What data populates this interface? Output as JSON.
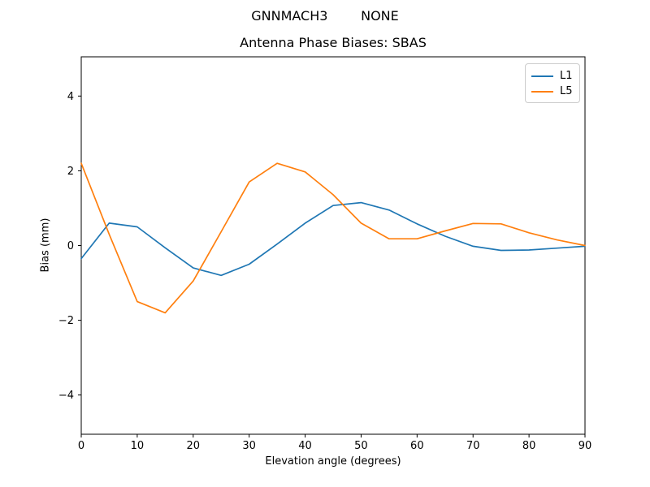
{
  "suptitle": "GNNMACH3        NONE",
  "chart_data": {
    "type": "line",
    "title": "Antenna Phase Biases: SBAS",
    "xlabel": "Elevation angle (degrees)",
    "ylabel": "Bias (mm)",
    "xlim": [
      0,
      90
    ],
    "ylim": [
      -5.05,
      5.05
    ],
    "xticks": [
      0,
      10,
      20,
      30,
      40,
      50,
      60,
      70,
      80,
      90
    ],
    "yticks": [
      -4,
      -2,
      0,
      2,
      4
    ],
    "grid": false,
    "legend_position": "upper right",
    "background": "#ffffff",
    "spine_color": "#000000",
    "x": [
      0,
      5,
      10,
      15,
      20,
      25,
      30,
      35,
      40,
      45,
      50,
      55,
      60,
      65,
      70,
      75,
      80,
      85,
      90
    ],
    "series": [
      {
        "name": "L1",
        "color": "#1f77b4",
        "values": [
          -0.35,
          0.6,
          0.5,
          -0.06,
          -0.6,
          -0.8,
          -0.5,
          0.04,
          0.6,
          1.07,
          1.15,
          0.95,
          0.58,
          0.25,
          -0.02,
          -0.13,
          -0.12,
          -0.07,
          -0.02
        ]
      },
      {
        "name": "L5",
        "color": "#ff7f0e",
        "values": [
          2.2,
          0.3,
          -1.5,
          -1.8,
          -0.95,
          0.37,
          1.7,
          2.2,
          1.97,
          1.36,
          0.6,
          0.18,
          0.18,
          0.39,
          0.59,
          0.58,
          0.34,
          0.15,
          0.0
        ]
      }
    ]
  }
}
